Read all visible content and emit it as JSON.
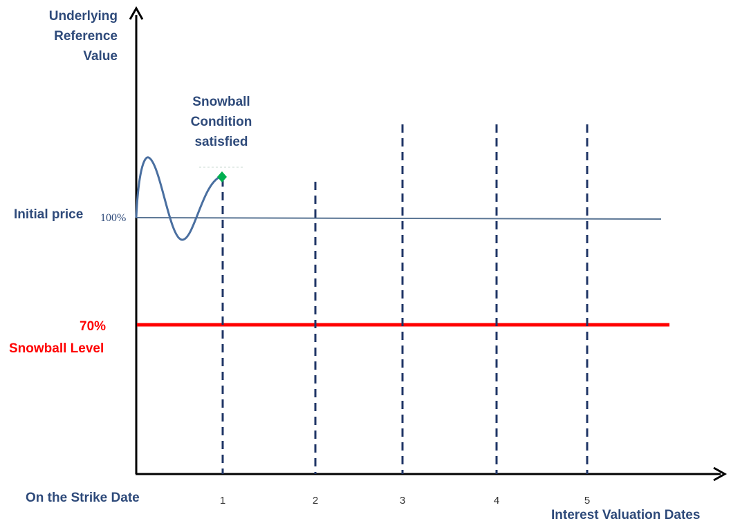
{
  "labels": {
    "y_axis_title": "Underlying\nReference\nValue",
    "x_axis_title": "Interest Valuation Dates",
    "strike_date": "On the Strike Date",
    "initial_price": "Initial price",
    "initial_pct": "100%",
    "barrier_pct": "70%",
    "barrier_name": "Snowball Level",
    "condition": "Snowball\nCondition\nsatisfied"
  },
  "valuation_dates": [
    "1",
    "2",
    "3",
    "4",
    "5"
  ],
  "colors": {
    "axis": "#000000",
    "text": "#2e4a7a",
    "price_path": "#4a6fa0",
    "initial_line": "#5a7594",
    "barrier_line": "#ff0000",
    "date_lines": "#1f3566",
    "marker": "#00b050"
  },
  "icons": {
    "condition_marker": "green-diamond"
  }
}
